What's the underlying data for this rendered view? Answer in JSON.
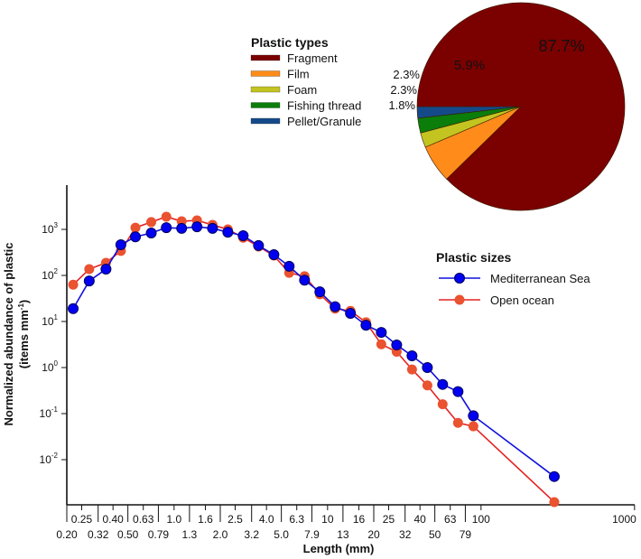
{
  "chart_data": [
    {
      "type": "pie",
      "legend_title": "Plastic types",
      "legend_placement": "left",
      "slices": [
        {
          "name": "Fragment",
          "value": 87.7,
          "label": "87.7%",
          "color": "#7b0000"
        },
        {
          "name": "Film",
          "value": 5.9,
          "label": "5.9%",
          "color": "#ff8c1a"
        },
        {
          "name": "Foam",
          "value": 2.3,
          "label": "2.3%",
          "color": "#c4c421"
        },
        {
          "name": "Fishing thread",
          "value": 2.3,
          "label": "2.3%",
          "color": "#0a7d0a"
        },
        {
          "name": "Pellet/Granule",
          "value": 1.8,
          "label": "1.8%",
          "color": "#154a8a"
        }
      ]
    },
    {
      "type": "line",
      "xscale": "log",
      "yscale": "log",
      "xlabel": "Length (mm)",
      "ylabel_line1": "Normalized abundance of plastic",
      "ylabel_line2": "(items mm",
      "ylabel_sup": "-1",
      "ylabel_close": ")",
      "xlim": [
        0.2,
        1000
      ],
      "ylim": [
        0.001,
        10000
      ],
      "legend_title": "Plastic sizes",
      "legend_placement": "right",
      "x_tick_labels_upper": [
        "0.25",
        "0.40",
        "0.63",
        "1.0",
        "1.6",
        "2.5",
        "4.0",
        "6.3",
        "10",
        "16",
        "25",
        "40",
        "63",
        "100",
        "1000"
      ],
      "x_tick_values_upper": [
        0.25,
        0.4,
        0.63,
        1.0,
        1.6,
        2.5,
        4.0,
        6.3,
        10,
        16,
        25,
        40,
        63,
        100,
        1000
      ],
      "x_tick_labels_lower": [
        "0.20",
        "0.32",
        "0.50",
        "0.79",
        "1.3",
        "2.0",
        "3.2",
        "5.0",
        "7.9",
        "13",
        "20",
        "32",
        "50",
        "79"
      ],
      "x_tick_values_lower": [
        0.2,
        0.32,
        0.5,
        0.79,
        1.26,
        2.0,
        3.2,
        5.0,
        7.9,
        12.6,
        20,
        32,
        50,
        79
      ],
      "y_ticks": [
        {
          "value": 0.01,
          "base": "10",
          "exp": "-2"
        },
        {
          "value": 0.1,
          "base": "10",
          "exp": "-1"
        },
        {
          "value": 1,
          "base": "10",
          "exp": "0"
        },
        {
          "value": 10,
          "base": "10",
          "exp": "1"
        },
        {
          "value": 100,
          "base": "10",
          "exp": "2"
        },
        {
          "value": 1000,
          "base": "10",
          "exp": "3"
        }
      ],
      "x": [
        0.22,
        0.28,
        0.36,
        0.45,
        0.56,
        0.71,
        0.89,
        1.12,
        1.41,
        1.78,
        2.24,
        2.82,
        3.55,
        4.47,
        5.62,
        7.08,
        8.91,
        11.2,
        14.1,
        17.8,
        22.4,
        28.2,
        35.5,
        44.7,
        56.2,
        70.8,
        89.1,
        300
      ],
      "series": [
        {
          "name": "Mediterranean Sea",
          "color": "#1010e0",
          "marker_color": "#0000f0",
          "values": [
            19,
            76,
            137,
            464,
            690,
            835,
            1090,
            1050,
            1140,
            1050,
            870,
            730,
            445,
            282,
            158,
            79,
            44,
            21,
            15,
            8.3,
            5.8,
            3.1,
            1.8,
            1.0,
            0.43,
            0.3,
            0.09,
            0.0043
          ]
        },
        {
          "name": "Open ocean",
          "color": "#e52222",
          "marker_color": "#ea5230",
          "values": [
            63,
            137,
            188,
            340,
            1090,
            1440,
            1880,
            1500,
            1570,
            1250,
            1000,
            660,
            425,
            270,
            114,
            96,
            39,
            19,
            17,
            9.6,
            3.2,
            2.2,
            0.91,
            0.41,
            0.16,
            0.063,
            0.053,
            0.0012
          ]
        }
      ]
    }
  ]
}
